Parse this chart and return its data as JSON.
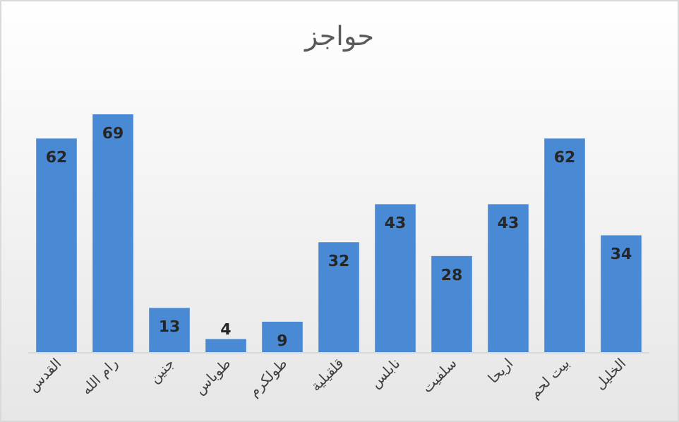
{
  "chart_data": {
    "type": "bar",
    "title": "حواجز",
    "categories": [
      "القدس",
      "رام الله",
      "جنين",
      "طوباس",
      "طولكرم",
      "قلقيلية",
      "نابلس",
      "سلفيت",
      "اريحا",
      "بيت لحم",
      "الخليل"
    ],
    "values": [
      62,
      69,
      13,
      4,
      9,
      32,
      43,
      28,
      43,
      62,
      34
    ],
    "color": "#4a8ad4",
    "data_labels": true
  }
}
